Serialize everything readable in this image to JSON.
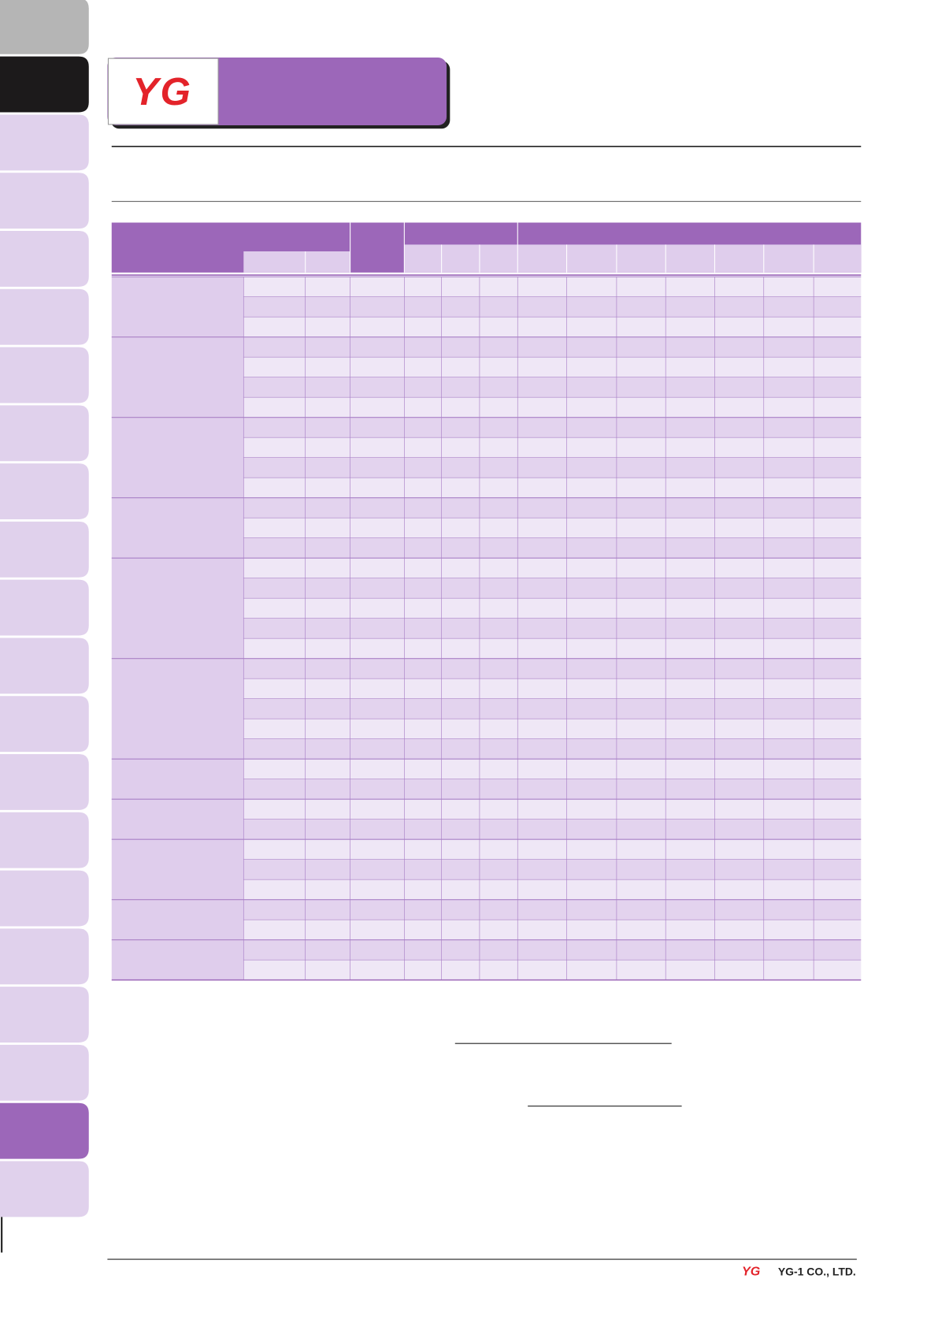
{
  "header": {
    "logo": "YG"
  },
  "footer": {
    "logo": "YG",
    "company": "YG-1 CO., LTD."
  }
}
